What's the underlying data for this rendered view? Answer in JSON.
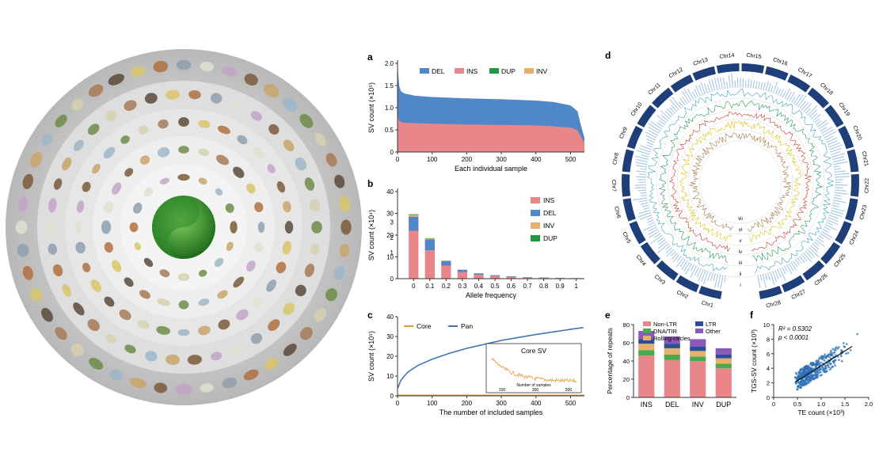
{
  "colors": {
    "del": "#4f87c9",
    "ins": "#e8868a",
    "dup": "#1f9a3c",
    "inv": "#e7b06e",
    "core": "#e29b3c",
    "pan": "#3f76b6",
    "nonltr": "#e8868a",
    "dnatir": "#4aa94f",
    "rolling": "#e7b06e",
    "ltr": "#2a4f94",
    "other": "#8a5ab8",
    "circos_band": "#1f3f7a",
    "scatter": "#2e6fb5"
  },
  "chart_data": [
    {
      "id": "a",
      "type": "area",
      "panel_label": "a",
      "title": "",
      "xlabel": "Each individual sample",
      "ylabel": "SV count (×10⁵)",
      "xlim": [
        0,
        540
      ],
      "ylim": [
        0,
        2.0
      ],
      "xticks": [
        0,
        100,
        200,
        300,
        400,
        500
      ],
      "yticks": [
        "0",
        "0.5",
        "1.0",
        "1.5",
        "2.0"
      ],
      "legend": [
        "DEL",
        "INS",
        "DUP",
        "INV"
      ],
      "series": [
        {
          "name": "Total (DEL+INS+DUP+INV)",
          "x": [
            0,
            3,
            8,
            20,
            50,
            100,
            200,
            300,
            400,
            450,
            500,
            520,
            530,
            540
          ],
          "values": [
            1.95,
            1.55,
            1.38,
            1.32,
            1.27,
            1.24,
            1.21,
            1.19,
            1.16,
            1.13,
            1.05,
            0.92,
            0.6,
            0.32
          ]
        },
        {
          "name": "INS",
          "x": [
            0,
            3,
            8,
            20,
            50,
            100,
            200,
            300,
            400,
            450,
            500,
            520,
            530,
            540
          ],
          "values": [
            0.82,
            0.72,
            0.68,
            0.66,
            0.65,
            0.64,
            0.62,
            0.61,
            0.6,
            0.58,
            0.55,
            0.49,
            0.35,
            0.2
          ]
        }
      ]
    },
    {
      "id": "b",
      "type": "bar",
      "panel_label": "b",
      "xlabel": "Allele frequency",
      "ylabel": "SV count (×10⁴)",
      "ylim": [
        0,
        40
      ],
      "yticks": [
        "0",
        "10",
        "20",
        "30",
        "40"
      ],
      "axis_break_labels": [
        "3",
        "2",
        "1"
      ],
      "categories": [
        "0",
        "0.1",
        "0.2",
        "0.3",
        "0.4",
        "0.5",
        "0.6",
        "0.7",
        "0.8",
        "0.9",
        "1"
      ],
      "series": [
        {
          "name": "INS",
          "values": [
            22,
            13,
            6,
            3,
            1.8,
            1.2,
            0.8,
            0.5,
            0.4,
            0.3,
            0.2
          ]
        },
        {
          "name": "DEL",
          "values": [
            6.5,
            5,
            2,
            1,
            0.6,
            0.4,
            0.3,
            0.2,
            0.15,
            0.1,
            0.05
          ]
        },
        {
          "name": "INV",
          "values": [
            0.8,
            0.4,
            0.2,
            0.1,
            0.05,
            0.03,
            0.02,
            0.02,
            0.01,
            0.01,
            0.01
          ]
        },
        {
          "name": "DUP",
          "values": [
            0.3,
            0.2,
            0.1,
            0.05,
            0.03,
            0.02,
            0.01,
            0.01,
            0.01,
            0.01,
            0.01
          ]
        }
      ]
    },
    {
      "id": "c",
      "type": "line",
      "panel_label": "c",
      "xlabel": "The number of included samples",
      "ylabel": "SV count (×10⁵)",
      "xlim": [
        0,
        540
      ],
      "ylim": [
        0,
        40
      ],
      "xticks": [
        0,
        100,
        200,
        300,
        400,
        500
      ],
      "yticks": [
        "0",
        "10",
        "20",
        "30",
        "40"
      ],
      "legend": [
        "Core",
        "Pan"
      ],
      "inset_title": "Core SV",
      "inset_xlabel": "Number of samples",
      "inset_xticks": [
        "100",
        "300",
        "500"
      ],
      "series": [
        {
          "name": "Pan",
          "x": [
            1,
            10,
            30,
            60,
            100,
            150,
            200,
            250,
            300,
            350,
            400,
            450,
            500,
            540
          ],
          "values": [
            4,
            8,
            12,
            15.5,
            18.5,
            21.5,
            24,
            26,
            28,
            29.5,
            31,
            32.3,
            33.6,
            34.6
          ]
        },
        {
          "name": "Core",
          "x": [
            1,
            540
          ],
          "values": [
            0.3,
            0.3
          ]
        }
      ]
    },
    {
      "id": "d",
      "type": "other",
      "panel_label": "d",
      "chromosomes": [
        "Chr1",
        "Chr2",
        "Chr3",
        "Chr4",
        "Chr5",
        "Chr6",
        "Chr7",
        "Chr8",
        "Chr9",
        "Chr10",
        "Chr11",
        "Chr12",
        "Chr13",
        "Chr14",
        "Chr15",
        "Chr16",
        "Chr17",
        "Chr18",
        "Chr19",
        "Chr20",
        "Chr21",
        "Chr22",
        "Chr23",
        "Chr24",
        "Chr25",
        "Chr26",
        "Chr27",
        "Chr28"
      ],
      "track_labels": [
        "vii",
        "vi",
        "v",
        "iv",
        "iii",
        "ii",
        "i"
      ]
    },
    {
      "id": "e",
      "type": "bar",
      "panel_label": "e",
      "ylabel": "Percentage of repeats",
      "ylim": [
        0,
        80
      ],
      "yticks": [
        "0",
        "20",
        "40",
        "60",
        "80"
      ],
      "categories": [
        "INS",
        "DEL",
        "INV",
        "DUP"
      ],
      "legend": [
        "Non-LTR",
        "LTR",
        "DNA/TIR",
        "Other",
        "Rolling-circles"
      ],
      "series": [
        {
          "name": "Non-LTR",
          "values": [
            46,
            41,
            40,
            32
          ]
        },
        {
          "name": "DNA/TIR",
          "values": [
            6,
            6,
            5,
            5
          ]
        },
        {
          "name": "Rolling-circles",
          "values": [
            7,
            7,
            6,
            6
          ]
        },
        {
          "name": "LTR",
          "values": [
            5,
            5,
            5,
            4
          ]
        },
        {
          "name": "Other",
          "values": [
            9,
            8,
            8,
            7
          ]
        }
      ]
    },
    {
      "id": "f",
      "type": "scatter",
      "panel_label": "f",
      "xlabel": "TE count (×10³)",
      "ylabel": "TGS-SV count (×10³)",
      "xlim": [
        0,
        2.0
      ],
      "ylim": [
        0,
        10
      ],
      "xticks": [
        "0",
        "0.5",
        "1.0",
        "1.5",
        "2.0"
      ],
      "yticks": [
        "0",
        "2",
        "4",
        "6",
        "8",
        "10"
      ],
      "annotations": [
        "R² = 0.5302",
        "p < 0.0001"
      ],
      "trend": {
        "x": [
          0.45,
          1.65
        ],
        "y": [
          2.1,
          7.0
        ]
      }
    }
  ]
}
